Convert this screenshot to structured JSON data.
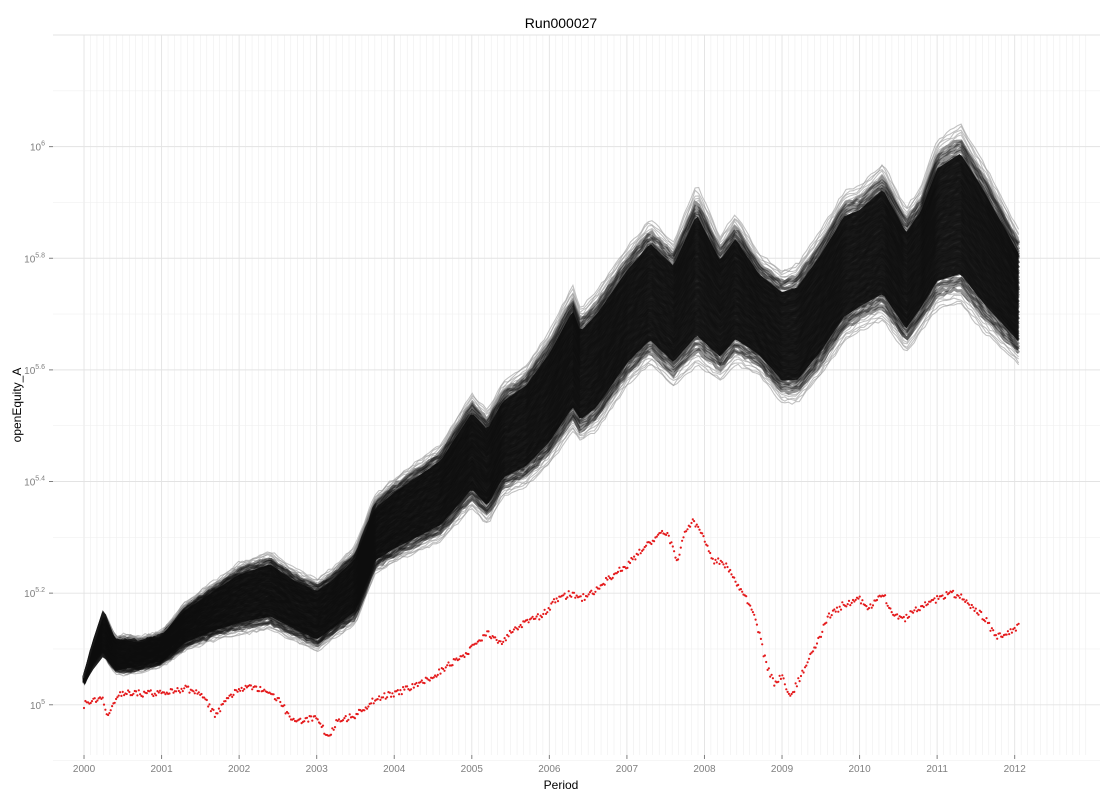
{
  "chart_data": {
    "type": "scatter",
    "title": "Run000027",
    "xlabel": "Period",
    "ylabel": "openEquity_A",
    "y_scale": "log10",
    "y_tick_base": "10",
    "y_tick_exponents": [
      "5",
      "5.2",
      "5.4",
      "5.6",
      "5.8",
      "6"
    ],
    "y_tick_exponent_values": [
      5,
      5.2,
      5.4,
      5.6,
      5.8,
      6
    ],
    "x_tick_labels": [
      "2000",
      "2001",
      "2002",
      "2003",
      "2004",
      "2005",
      "2006",
      "2007",
      "2008",
      "2009",
      "2010",
      "2011",
      "2012"
    ],
    "x_tick_values": [
      2000,
      2001,
      2002,
      2003,
      2004,
      2005,
      2006,
      2007,
      2008,
      2009,
      2010,
      2011,
      2012
    ],
    "xlim": [
      1999.6,
      2013.1
    ],
    "ylim_log10": [
      4.91,
      6.2
    ],
    "grid": true,
    "legend": "none",
    "colors": {
      "band": "#0d0d0d",
      "band_fade": "#9a9a9a",
      "highlight": "#e41a1c",
      "grid": "#ebebeb"
    },
    "series": [
      {
        "role": "band",
        "x": [
          2000.0,
          2000.1,
          2000.25,
          2000.4,
          2000.7,
          2001.0,
          2001.3,
          2001.7,
          2002.0,
          2002.4,
          2002.7,
          2003.0,
          2003.2,
          2003.5,
          2003.75,
          2004.0,
          2004.3,
          2004.6,
          2005.0,
          2005.2,
          2005.4,
          2005.7,
          2006.0,
          2006.3,
          2006.4,
          2006.6,
          2007.0,
          2007.3,
          2007.6,
          2007.9,
          2008.2,
          2008.4,
          2008.7,
          2009.0,
          2009.2,
          2009.5,
          2009.8,
          2010.0,
          2010.3,
          2010.6,
          2010.8,
          2011.0,
          2011.3,
          2011.6,
          2012.05
        ],
        "lower": [
          5.03,
          5.05,
          5.07,
          5.05,
          5.06,
          5.07,
          5.1,
          5.12,
          5.13,
          5.14,
          5.12,
          5.1,
          5.12,
          5.15,
          5.24,
          5.26,
          5.28,
          5.3,
          5.36,
          5.33,
          5.38,
          5.4,
          5.44,
          5.5,
          5.48,
          5.5,
          5.58,
          5.62,
          5.58,
          5.62,
          5.59,
          5.62,
          5.6,
          5.55,
          5.55,
          5.6,
          5.66,
          5.68,
          5.7,
          5.64,
          5.68,
          5.72,
          5.73,
          5.68,
          5.62
        ],
        "upper": [
          5.06,
          5.12,
          5.19,
          5.13,
          5.12,
          5.13,
          5.18,
          5.22,
          5.25,
          5.27,
          5.24,
          5.22,
          5.24,
          5.28,
          5.37,
          5.4,
          5.43,
          5.46,
          5.55,
          5.52,
          5.57,
          5.6,
          5.66,
          5.74,
          5.7,
          5.73,
          5.81,
          5.86,
          5.82,
          5.92,
          5.83,
          5.87,
          5.8,
          5.77,
          5.78,
          5.84,
          5.91,
          5.92,
          5.96,
          5.88,
          5.92,
          6.0,
          6.03,
          5.96,
          5.84
        ]
      },
      {
        "role": "highlight",
        "x": [
          2000.0,
          2000.1,
          2000.25,
          2000.3,
          2000.45,
          2000.7,
          2001.0,
          2001.3,
          2001.5,
          2001.7,
          2001.85,
          2002.0,
          2002.3,
          2002.5,
          2002.65,
          2002.8,
          2003.0,
          2003.15,
          2003.25,
          2003.5,
          2003.75,
          2004.0,
          2004.2,
          2004.5,
          2004.8,
          2005.0,
          2005.2,
          2005.35,
          2005.6,
          2005.9,
          2006.1,
          2006.3,
          2006.4,
          2006.55,
          2006.8,
          2007.0,
          2007.2,
          2007.5,
          2007.6,
          2007.65,
          2007.75,
          2007.85,
          2007.95,
          2008.1,
          2008.3,
          2008.35,
          2008.5,
          2008.65,
          2008.8,
          2008.9,
          2009.0,
          2009.1,
          2009.2,
          2009.3,
          2009.45,
          2009.6,
          2009.8,
          2010.0,
          2010.1,
          2010.3,
          2010.45,
          2010.55,
          2010.7,
          2010.85,
          2011.0,
          2011.2,
          2011.35,
          2011.5,
          2011.65,
          2011.75,
          2011.9,
          2012.05
        ],
        "y": [
          5.0,
          5.01,
          5.01,
          4.98,
          5.02,
          5.02,
          5.02,
          5.03,
          5.02,
          4.98,
          5.01,
          5.03,
          5.03,
          5.01,
          4.98,
          4.97,
          4.98,
          4.94,
          4.97,
          4.98,
          5.01,
          5.02,
          5.03,
          5.05,
          5.08,
          5.1,
          5.13,
          5.11,
          5.14,
          5.16,
          5.19,
          5.2,
          5.19,
          5.2,
          5.23,
          5.25,
          5.28,
          5.31,
          5.28,
          5.26,
          5.31,
          5.33,
          5.31,
          5.26,
          5.25,
          5.23,
          5.2,
          5.16,
          5.07,
          5.04,
          5.05,
          5.01,
          5.04,
          5.07,
          5.11,
          5.16,
          5.18,
          5.19,
          5.17,
          5.2,
          5.16,
          5.15,
          5.17,
          5.18,
          5.19,
          5.2,
          5.19,
          5.17,
          5.15,
          5.12,
          5.13,
          5.14
        ]
      }
    ]
  }
}
